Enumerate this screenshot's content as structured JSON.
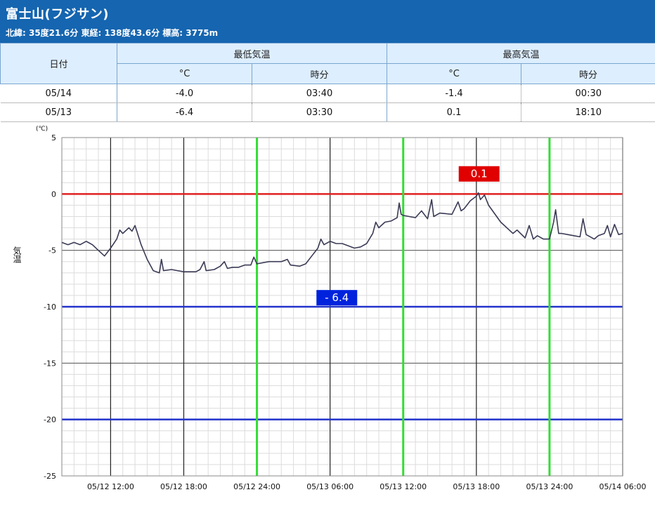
{
  "header": {
    "title": "富士山(フジサン)",
    "subtitle": "北緯: 35度21.6分 東経: 138度43.6分 標高: 3775m"
  },
  "table": {
    "date_header": "日付",
    "min_header": "最低気温",
    "max_header": "最高気温",
    "unit_c": "°C",
    "unit_time": "時分",
    "rows": [
      {
        "date": "05/14",
        "min": "-4.0",
        "min_time": "03:40",
        "max": "-1.4",
        "max_time": "00:30"
      },
      {
        "date": "05/13",
        "min": "-6.4",
        "min_time": "03:30",
        "max": "0.1",
        "max_time": "18:10"
      }
    ]
  },
  "chart_data": {
    "type": "line",
    "ylabel": "気温",
    "yunit": "(℃)",
    "ylim": [
      -25,
      5
    ],
    "yticks": [
      "5",
      "0",
      "-5",
      "-10",
      "-15",
      "-20",
      "-25"
    ],
    "x_range": [
      "05/12 08:00",
      "05/14 06:00"
    ],
    "xtick_labels": [
      "05/12 12:00",
      "05/12 18:00",
      "05/12 24:00",
      "05/13 06:00",
      "05/13 12:00",
      "05/13 18:00",
      "05/13 24:00",
      "05/14 06:00"
    ],
    "reference_lines": [
      {
        "y": 0,
        "color": "#e02020"
      },
      {
        "y": -10,
        "color": "#2233cc"
      },
      {
        "y": -20,
        "color": "#2233cc"
      }
    ],
    "day_separators": [
      "05/12 24:00",
      "05/13 12:00",
      "05/13 24:00"
    ],
    "annotations": [
      {
        "text": "0.1",
        "x": "05/13 18:10",
        "y": 0.1,
        "color": "#e00000"
      },
      {
        "text": "- 6.4",
        "x": "05/13 03:30",
        "y": -6.4,
        "color": "#0022dd"
      }
    ],
    "series": [
      {
        "color": "#3a3a55",
        "points": [
          [
            "05/12 08:00",
            -4.3
          ],
          [
            "05/12 08:30",
            -4.5
          ],
          [
            "05/12 09:00",
            -4.3
          ],
          [
            "05/12 09:30",
            -4.5
          ],
          [
            "05/12 10:00",
            -4.2
          ],
          [
            "05/12 10:30",
            -4.5
          ],
          [
            "05/12 11:00",
            -5.0
          ],
          [
            "05/12 11:30",
            -5.5
          ],
          [
            "05/12 12:00",
            -4.8
          ],
          [
            "05/12 12:30",
            -4.0
          ],
          [
            "05/12 12:45",
            -3.2
          ],
          [
            "05/12 13:00",
            -3.5
          ],
          [
            "05/12 13:30",
            -3.0
          ],
          [
            "05/12 13:45",
            -3.3
          ],
          [
            "05/12 14:00",
            -2.8
          ],
          [
            "05/12 14:30",
            -4.5
          ],
          [
            "05/12 15:00",
            -5.8
          ],
          [
            "05/12 15:30",
            -6.8
          ],
          [
            "05/12 16:00",
            -7.0
          ],
          [
            "05/12 16:10",
            -5.8
          ],
          [
            "05/12 16:20",
            -6.8
          ],
          [
            "05/12 17:00",
            -6.7
          ],
          [
            "05/12 18:00",
            -6.9
          ],
          [
            "05/12 19:00",
            -6.9
          ],
          [
            "05/12 19:20",
            -6.7
          ],
          [
            "05/12 19:40",
            -6.0
          ],
          [
            "05/12 19:50",
            -6.8
          ],
          [
            "05/12 20:30",
            -6.7
          ],
          [
            "05/12 21:00",
            -6.4
          ],
          [
            "05/12 21:20",
            -6.0
          ],
          [
            "05/12 21:35",
            -6.6
          ],
          [
            "05/12 22:00",
            -6.5
          ],
          [
            "05/12 22:30",
            -6.5
          ],
          [
            "05/12 23:00",
            -6.3
          ],
          [
            "05/12 23:30",
            -6.3
          ],
          [
            "05/12 23:45",
            -5.6
          ],
          [
            "05/13 00:00",
            -6.2
          ],
          [
            "05/13 01:00",
            -6.0
          ],
          [
            "05/13 02:00",
            -6.0
          ],
          [
            "05/13 02:30",
            -5.8
          ],
          [
            "05/13 02:45",
            -6.3
          ],
          [
            "05/13 03:30",
            -6.4
          ],
          [
            "05/13 04:00",
            -6.2
          ],
          [
            "05/13 04:30",
            -5.5
          ],
          [
            "05/13 05:00",
            -4.8
          ],
          [
            "05/13 05:15",
            -4.0
          ],
          [
            "05/13 05:30",
            -4.5
          ],
          [
            "05/13 06:00",
            -4.2
          ],
          [
            "05/13 06:30",
            -4.4
          ],
          [
            "05/13 07:00",
            -4.4
          ],
          [
            "05/13 07:30",
            -4.6
          ],
          [
            "05/13 08:00",
            -4.8
          ],
          [
            "05/13 08:30",
            -4.7
          ],
          [
            "05/13 09:00",
            -4.4
          ],
          [
            "05/13 09:30",
            -3.5
          ],
          [
            "05/13 09:45",
            -2.5
          ],
          [
            "05/13 10:00",
            -3.0
          ],
          [
            "05/13 10:30",
            -2.5
          ],
          [
            "05/13 11:00",
            -2.4
          ],
          [
            "05/13 11:30",
            -2.1
          ],
          [
            "05/13 11:40",
            -0.8
          ],
          [
            "05/13 11:50",
            -1.8
          ],
          [
            "05/13 12:00",
            -1.9
          ],
          [
            "05/13 13:00",
            -2.1
          ],
          [
            "05/13 13:30",
            -1.5
          ],
          [
            "05/13 14:00",
            -2.2
          ],
          [
            "05/13 14:20",
            -0.5
          ],
          [
            "05/13 14:30",
            -2.0
          ],
          [
            "05/13 15:00",
            -1.7
          ],
          [
            "05/13 16:00",
            -1.8
          ],
          [
            "05/13 16:30",
            -0.7
          ],
          [
            "05/13 16:45",
            -1.5
          ],
          [
            "05/13 17:00",
            -1.3
          ],
          [
            "05/13 17:30",
            -0.6
          ],
          [
            "05/13 18:00",
            -0.2
          ],
          [
            "05/13 18:10",
            0.1
          ],
          [
            "05/13 18:20",
            -0.5
          ],
          [
            "05/13 18:40",
            -0.1
          ],
          [
            "05/13 19:00",
            -1.0
          ],
          [
            "05/13 20:00",
            -2.5
          ],
          [
            "05/13 21:00",
            -3.5
          ],
          [
            "05/13 21:20",
            -3.2
          ],
          [
            "05/13 22:00",
            -3.9
          ],
          [
            "05/13 22:20",
            -2.8
          ],
          [
            "05/13 22:40",
            -4.0
          ],
          [
            "05/13 23:00",
            -3.7
          ],
          [
            "05/13 23:30",
            -4.0
          ],
          [
            "05/14 00:00",
            -4.0
          ],
          [
            "05/14 00:20",
            -2.5
          ],
          [
            "05/14 00:30",
            -1.4
          ],
          [
            "05/14 00:45",
            -3.5
          ],
          [
            "05/14 01:00",
            -3.5
          ],
          [
            "05/14 01:30",
            -3.6
          ],
          [
            "05/14 02:00",
            -3.7
          ],
          [
            "05/14 02:30",
            -3.8
          ],
          [
            "05/14 02:45",
            -2.2
          ],
          [
            "05/14 03:00",
            -3.6
          ],
          [
            "05/14 03:40",
            -4.0
          ],
          [
            "05/14 04:00",
            -3.7
          ],
          [
            "05/14 04:30",
            -3.5
          ],
          [
            "05/14 04:45",
            -2.8
          ],
          [
            "05/14 05:00",
            -3.8
          ],
          [
            "05/14 05:20",
            -2.7
          ],
          [
            "05/14 05:40",
            -3.6
          ],
          [
            "05/14 06:00",
            -3.5
          ]
        ]
      }
    ]
  }
}
